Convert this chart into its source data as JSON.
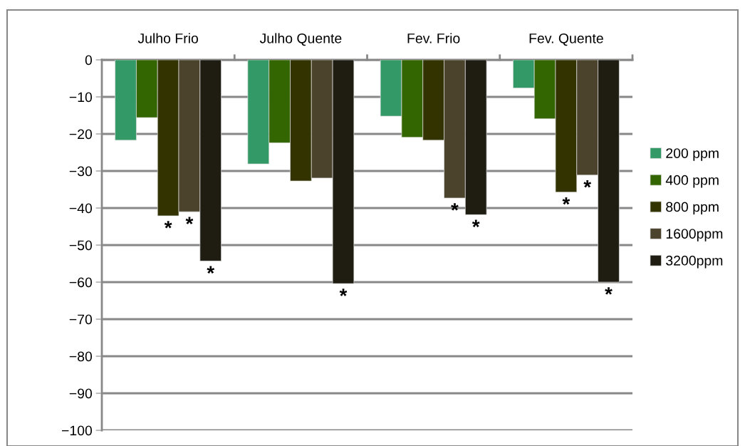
{
  "chart_data": {
    "type": "bar",
    "categories": [
      "Julho Frio",
      "Julho Quente",
      "Fev. Frio",
      "Fev. Quente"
    ],
    "series": [
      {
        "name": "200 ppm",
        "color": "#339966",
        "values": [
          -21.7,
          -28.1,
          -15.2,
          -7.6
        ]
      },
      {
        "name": "400 ppm",
        "color": "#336600",
        "values": [
          -15.6,
          -22.4,
          -20.9,
          -15.9
        ]
      },
      {
        "name": "800 ppm",
        "color": "#333300",
        "values": [
          -42.1,
          -32.7,
          -21.7,
          -35.7
        ],
        "value_labels": [
          "*",
          null,
          null,
          "*"
        ]
      },
      {
        "name": "1600ppm",
        "color": "#4b432c",
        "values": [
          -41.0,
          -31.9,
          -37.3,
          -31.1
        ],
        "value_labels": [
          "*",
          null,
          "*",
          "*"
        ]
      },
      {
        "name": "3200ppm",
        "color": "#1f1d12",
        "values": [
          -54.3,
          -60.4,
          -41.8,
          -60.0
        ],
        "value_labels": [
          "*",
          "*",
          "*",
          "*"
        ]
      }
    ],
    "ylim": [
      -100,
      0
    ],
    "yticks": [
      0,
      -10,
      -20,
      -30,
      -40,
      -50,
      -60,
      -70,
      -80,
      -90,
      -100
    ],
    "grid": "y",
    "legend": "right"
  }
}
